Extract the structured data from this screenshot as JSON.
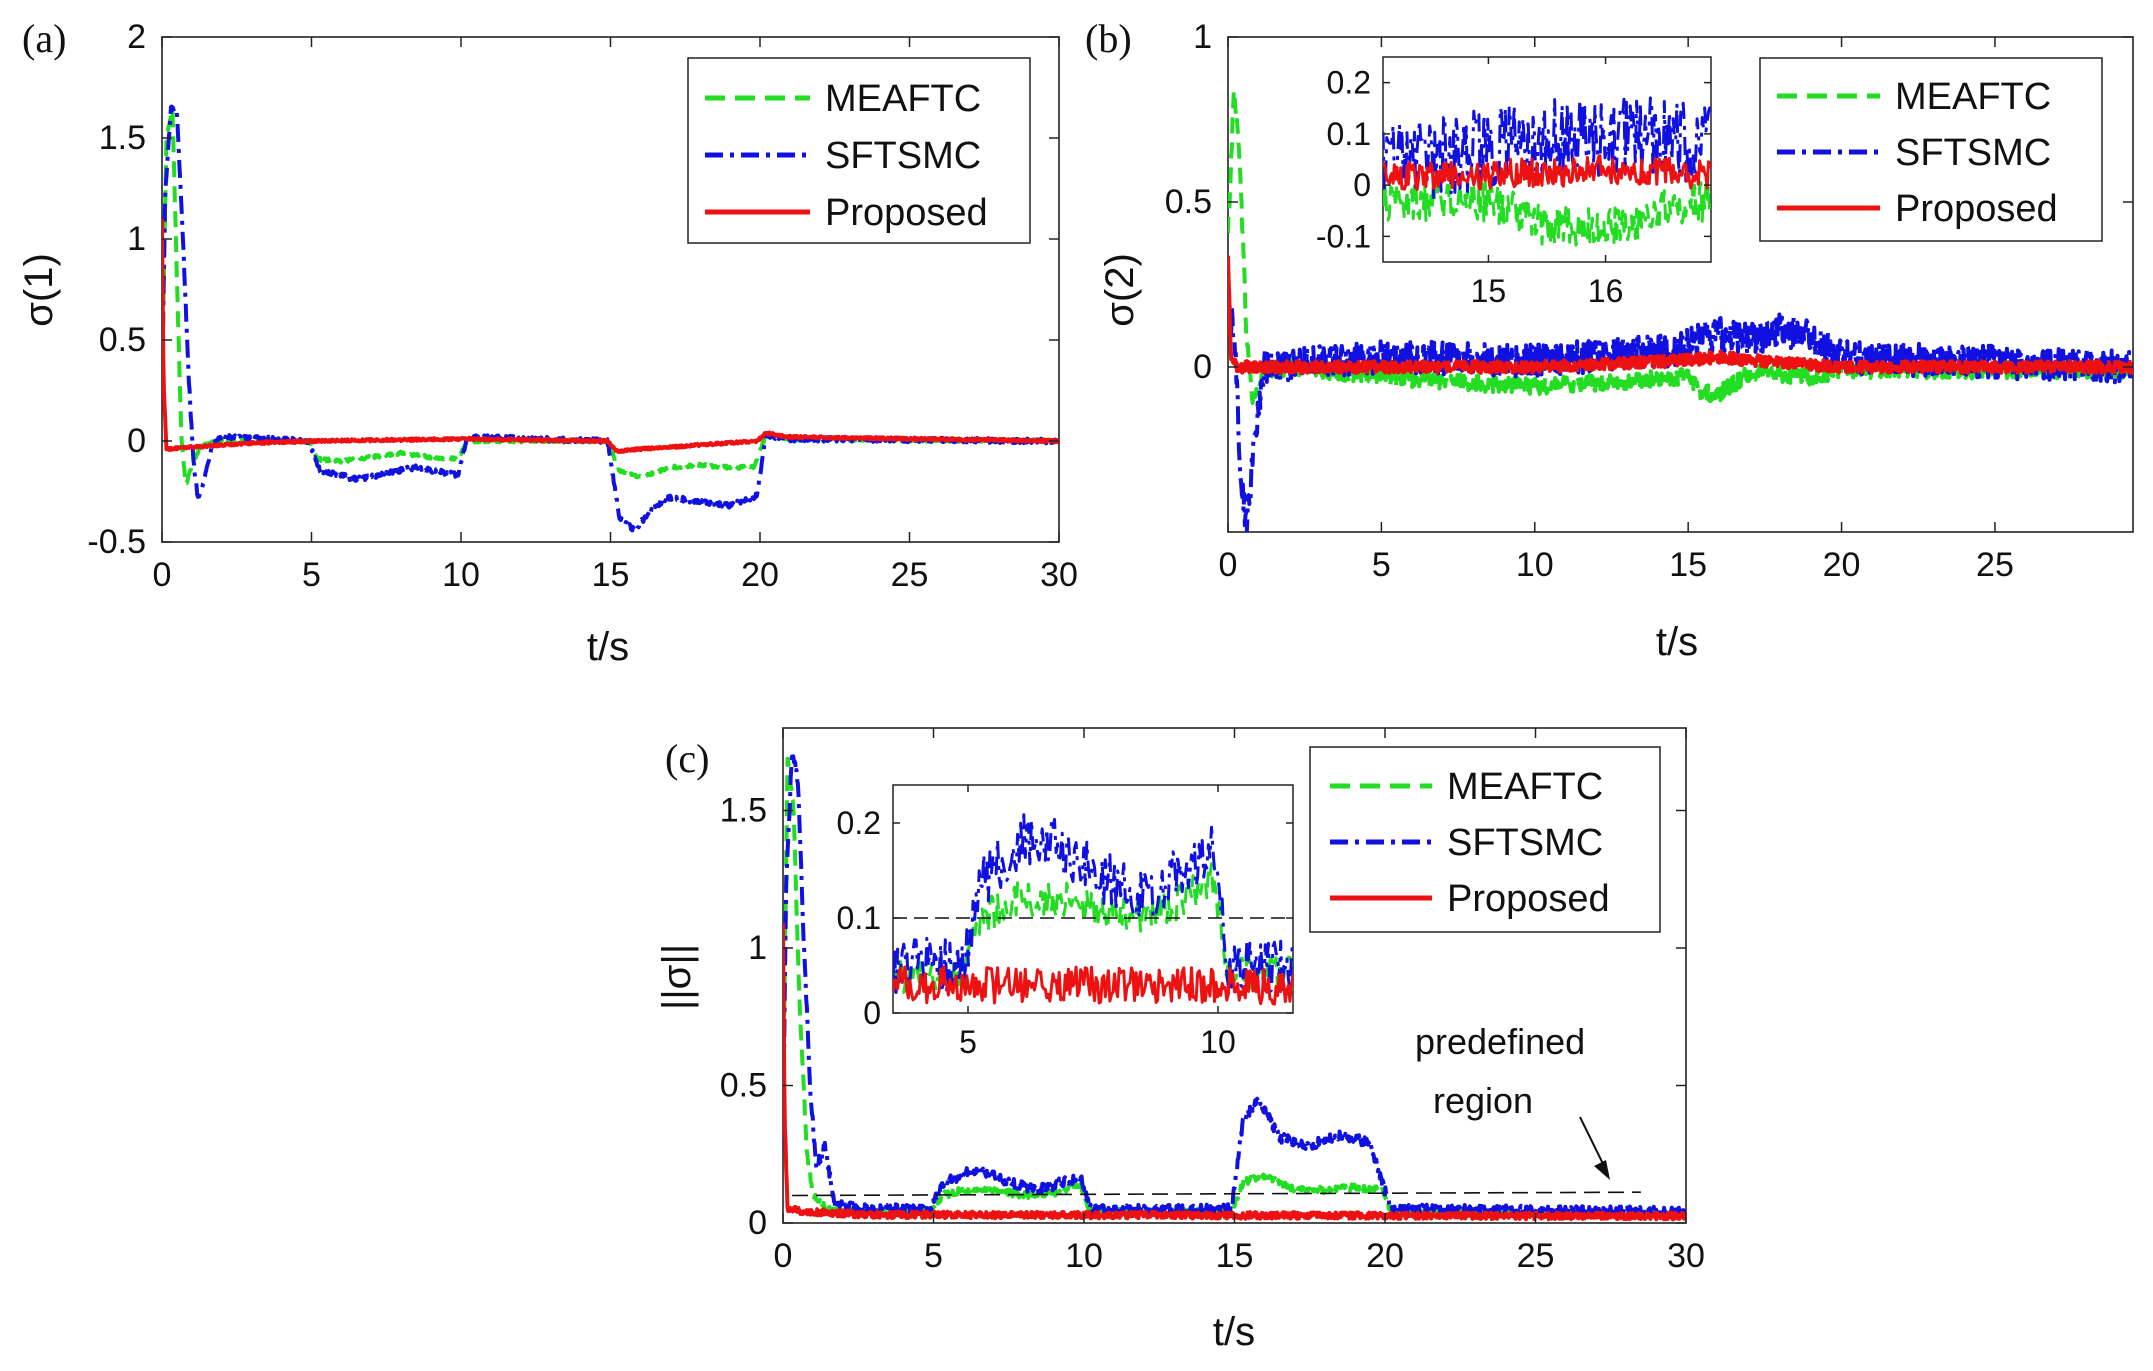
{
  "colors": {
    "meaftc": "#22dd22",
    "sftsmc": "#1010e0",
    "proposed": "#ee1111",
    "axis": "#222222",
    "region": "#111111"
  },
  "legend": [
    "MEAFTC",
    "SFTSMC",
    "Proposed"
  ],
  "chart_data": [
    {
      "panel": "(a)",
      "type": "line",
      "ylabel": "σ(1)",
      "xlabel": "t/s",
      "xlim": [
        0,
        30
      ],
      "ylim": [
        -0.5,
        2
      ],
      "xticks": [
        "0",
        "5",
        "10",
        "15",
        "20",
        "25",
        "30"
      ],
      "yticks": [
        "-0.5",
        "0",
        "0.5",
        "1",
        "1.5",
        "2"
      ],
      "legend_position": "top-right",
      "series": [
        {
          "name": "MEAFTC",
          "noise": 0.008,
          "points": [
            [
              0,
              0.3
            ],
            [
              0.15,
              1.5
            ],
            [
              0.35,
              1.65
            ],
            [
              0.5,
              0.8
            ],
            [
              0.65,
              0.0
            ],
            [
              0.8,
              -0.22
            ],
            [
              1.0,
              -0.12
            ],
            [
              1.3,
              -0.02
            ],
            [
              2,
              0.0
            ],
            [
              4.9,
              0.0
            ],
            [
              5.2,
              -0.09
            ],
            [
              6,
              -0.1
            ],
            [
              7,
              -0.08
            ],
            [
              8,
              -0.06
            ],
            [
              9,
              -0.08
            ],
            [
              9.9,
              -0.09
            ],
            [
              10.2,
              0.0
            ],
            [
              14.9,
              0.0
            ],
            [
              15.3,
              -0.15
            ],
            [
              16,
              -0.18
            ],
            [
              17,
              -0.13
            ],
            [
              18,
              -0.12
            ],
            [
              19,
              -0.13
            ],
            [
              19.8,
              -0.13
            ],
            [
              20.2,
              0.03
            ],
            [
              21,
              0.01
            ],
            [
              30,
              0.0
            ]
          ]
        },
        {
          "name": "SFTSMC",
          "noise": 0.012,
          "points": [
            [
              0,
              0.2
            ],
            [
              0.1,
              1.2
            ],
            [
              0.3,
              1.65
            ],
            [
              0.5,
              1.62
            ],
            [
              0.7,
              1.0
            ],
            [
              0.9,
              0.3
            ],
            [
              1.05,
              -0.1
            ],
            [
              1.2,
              -0.28
            ],
            [
              1.4,
              -0.2
            ],
            [
              1.7,
              0.0
            ],
            [
              2,
              0.02
            ],
            [
              4.9,
              0.0
            ],
            [
              5.3,
              -0.15
            ],
            [
              6,
              -0.17
            ],
            [
              6.5,
              -0.19
            ],
            [
              7.5,
              -0.16
            ],
            [
              8.5,
              -0.13
            ],
            [
              9.9,
              -0.17
            ],
            [
              10.2,
              0.02
            ],
            [
              14.9,
              0.0
            ],
            [
              15.3,
              -0.38
            ],
            [
              15.8,
              -0.44
            ],
            [
              16.5,
              -0.32
            ],
            [
              17,
              -0.28
            ],
            [
              18,
              -0.3
            ],
            [
              19,
              -0.32
            ],
            [
              19.9,
              -0.27
            ],
            [
              20.2,
              0.03
            ],
            [
              21,
              0.01
            ],
            [
              30,
              0.0
            ]
          ]
        },
        {
          "name": "Proposed",
          "noise": 0.006,
          "points": [
            [
              0,
              1.1
            ],
            [
              0.05,
              0.3
            ],
            [
              0.15,
              -0.04
            ],
            [
              1,
              -0.03
            ],
            [
              3,
              -0.01
            ],
            [
              5,
              0.0
            ],
            [
              10,
              0.01
            ],
            [
              14.9,
              0.0
            ],
            [
              15.2,
              -0.05
            ],
            [
              16,
              -0.04
            ],
            [
              19.9,
              0.0
            ],
            [
              20.2,
              0.04
            ],
            [
              21,
              0.02
            ],
            [
              30,
              0.0
            ]
          ]
        }
      ]
    },
    {
      "panel": "(b)",
      "type": "line",
      "ylabel": "σ(2)",
      "xlabel": "t/s",
      "xlim": [
        0,
        29.5
      ],
      "ylim": [
        -0.5,
        1
      ],
      "xticks": [
        "0",
        "5",
        "10",
        "15",
        "20",
        "25"
      ],
      "yticks": [
        "0",
        "0.5",
        "1"
      ],
      "legend_position": "top-right",
      "inset": {
        "xlim": [
          14.1,
          16.9
        ],
        "ylim": [
          -0.15,
          0.25
        ],
        "xticks": [
          "15",
          "16"
        ],
        "yticks": [
          "-0.1",
          "0",
          "0.1",
          "0.2"
        ]
      },
      "series": [
        {
          "name": "MEAFTC",
          "noise": 0.025,
          "points": [
            [
              0,
              0.4
            ],
            [
              0.2,
              0.85
            ],
            [
              0.4,
              0.6
            ],
            [
              0.6,
              0.1
            ],
            [
              0.8,
              -0.1
            ],
            [
              1.2,
              -0.02
            ],
            [
              2,
              0.0
            ],
            [
              5,
              -0.03
            ],
            [
              10,
              -0.06
            ],
            [
              15,
              -0.03
            ],
            [
              15.5,
              -0.08
            ],
            [
              16,
              -0.08
            ],
            [
              17,
              -0.02
            ],
            [
              18,
              -0.02
            ],
            [
              19,
              -0.03
            ],
            [
              20,
              -0.01
            ],
            [
              29.5,
              -0.01
            ]
          ]
        },
        {
          "name": "SFTSMC",
          "noise": 0.05,
          "points": [
            [
              0,
              0.2
            ],
            [
              0.2,
              0.1
            ],
            [
              0.4,
              -0.3
            ],
            [
              0.6,
              -0.48
            ],
            [
              0.9,
              -0.2
            ],
            [
              1.2,
              0.0
            ],
            [
              2,
              0.01
            ],
            [
              5,
              0.03
            ],
            [
              10,
              0.02
            ],
            [
              14.5,
              0.05
            ],
            [
              15,
              0.07
            ],
            [
              16,
              0.1
            ],
            [
              17,
              0.08
            ],
            [
              18,
              0.11
            ],
            [
              19,
              0.09
            ],
            [
              20,
              0.03
            ],
            [
              29.5,
              0.0
            ]
          ]
        },
        {
          "name": "Proposed",
          "noise": 0.018,
          "points": [
            [
              0,
              0.33
            ],
            [
              0.1,
              0.02
            ],
            [
              0.3,
              0.0
            ],
            [
              5,
              0.0
            ],
            [
              10,
              0.0
            ],
            [
              15,
              0.02
            ],
            [
              16,
              0.03
            ],
            [
              17,
              0.02
            ],
            [
              20,
              0.0
            ],
            [
              29.5,
              0.0
            ]
          ]
        }
      ]
    },
    {
      "panel": "(c)",
      "type": "line",
      "ylabel": "||σ||",
      "xlabel": "t/s",
      "xlim": [
        0,
        30
      ],
      "ylim": [
        0,
        1.8
      ],
      "xticks": [
        "0",
        "5",
        "10",
        "15",
        "20",
        "25",
        "30"
      ],
      "yticks": [
        "0",
        "0.5",
        "1",
        "1.5"
      ],
      "legend_position": "top-right",
      "predefined_region": 0.1,
      "annotation": [
        "predefined",
        "region"
      ],
      "inset": {
        "xlim": [
          3.5,
          11.5
        ],
        "ylim": [
          0,
          0.24
        ],
        "xticks": [
          "5",
          "10"
        ],
        "yticks": [
          "0",
          "0.1",
          "0.2"
        ]
      },
      "series": [
        {
          "name": "MEAFTC",
          "noise": 0.012,
          "points": [
            [
              0,
              0.4
            ],
            [
              0.15,
              1.7
            ],
            [
              0.35,
              1.5
            ],
            [
              0.55,
              0.8
            ],
            [
              0.8,
              0.25
            ],
            [
              1.0,
              0.1
            ],
            [
              1.5,
              0.05
            ],
            [
              3,
              0.04
            ],
            [
              4.9,
              0.04
            ],
            [
              5.3,
              0.1
            ],
            [
              6,
              0.12
            ],
            [
              7,
              0.12
            ],
            [
              8,
              0.1
            ],
            [
              9,
              0.11
            ],
            [
              9.9,
              0.14
            ],
            [
              10.2,
              0.04
            ],
            [
              14.9,
              0.04
            ],
            [
              15.3,
              0.15
            ],
            [
              16,
              0.17
            ],
            [
              17,
              0.12
            ],
            [
              18,
              0.12
            ],
            [
              19,
              0.13
            ],
            [
              19.9,
              0.12
            ],
            [
              20.2,
              0.04
            ],
            [
              30,
              0.03
            ]
          ]
        },
        {
          "name": "SFTSMC",
          "noise": 0.018,
          "points": [
            [
              0,
              0.3
            ],
            [
              0.1,
              1.2
            ],
            [
              0.3,
              1.72
            ],
            [
              0.5,
              1.6
            ],
            [
              0.7,
              1.0
            ],
            [
              0.9,
              0.5
            ],
            [
              1.1,
              0.2
            ],
            [
              1.4,
              0.28
            ],
            [
              1.7,
              0.08
            ],
            [
              2.5,
              0.05
            ],
            [
              4.9,
              0.05
            ],
            [
              5.3,
              0.14
            ],
            [
              6,
              0.18
            ],
            [
              6.5,
              0.19
            ],
            [
              7.5,
              0.15
            ],
            [
              8.5,
              0.12
            ],
            [
              9.9,
              0.17
            ],
            [
              10.2,
              0.05
            ],
            [
              14.9,
              0.05
            ],
            [
              15.3,
              0.38
            ],
            [
              15.8,
              0.45
            ],
            [
              16.5,
              0.31
            ],
            [
              17.5,
              0.28
            ],
            [
              18.5,
              0.32
            ],
            [
              19.5,
              0.29
            ],
            [
              20.2,
              0.05
            ],
            [
              30,
              0.04
            ]
          ]
        },
        {
          "name": "Proposed",
          "noise": 0.012,
          "points": [
            [
              0,
              1.1
            ],
            [
              0.05,
              0.4
            ],
            [
              0.15,
              0.05
            ],
            [
              1,
              0.04
            ],
            [
              3,
              0.03
            ],
            [
              30,
              0.025
            ]
          ]
        }
      ]
    }
  ]
}
